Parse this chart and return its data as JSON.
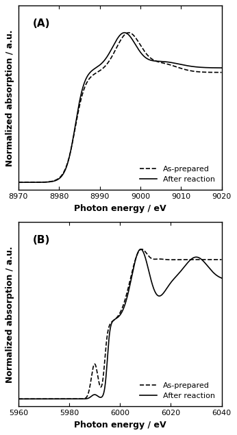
{
  "panel_A": {
    "label": "(A)",
    "xlabel": "Photon energy / eV",
    "ylabel": "Normalized absorption / a.u.",
    "xlim": [
      8970,
      9020
    ],
    "xticks": [
      8970,
      8980,
      8990,
      9000,
      9010,
      9020
    ],
    "legend_labels": [
      "As-prepared",
      "After reaction"
    ]
  },
  "panel_B": {
    "label": "(B)",
    "xlabel": "Photon energy / eV",
    "ylabel": "Normalized absorption / a.u.",
    "xlim": [
      5960,
      6040
    ],
    "xticks": [
      5960,
      5980,
      6000,
      6020,
      6040
    ],
    "legend_labels": [
      "As-prepared",
      "After reaction"
    ]
  },
  "line_color": "#000000",
  "background_color": "#ffffff"
}
